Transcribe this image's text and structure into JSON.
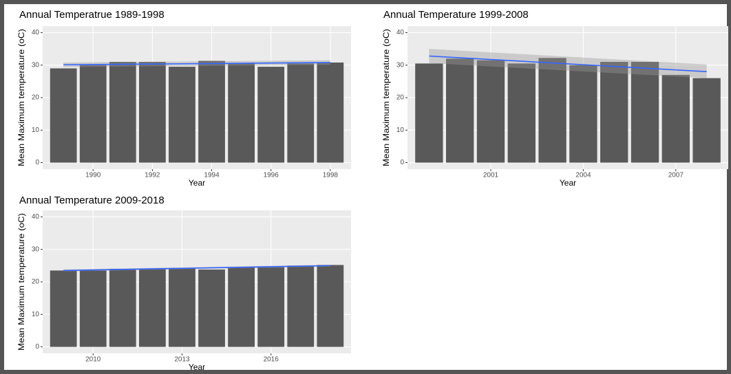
{
  "chart_data": [
    {
      "type": "bar",
      "title": "Annual Temperatrue 1989-1998",
      "x_label": "Year",
      "y_label": "Mean Maximum temperature (oC)",
      "x": [
        1989,
        1990,
        1991,
        1992,
        1993,
        1994,
        1995,
        1996,
        1997,
        1998
      ],
      "values": [
        29,
        30,
        31,
        31,
        29.5,
        31.3,
        30.5,
        29.5,
        30.5,
        30.8
      ],
      "color": "#595959",
      "xlim": [
        1988.3,
        1998.7
      ],
      "xticks": [
        1990,
        1992,
        1994,
        1996,
        1998
      ],
      "ylim": [
        -2,
        42
      ],
      "yticks": [
        0,
        10,
        20,
        30,
        40
      ],
      "grid": true,
      "trend": {
        "x": [
          1989,
          1998
        ],
        "values": [
          30.1,
          30.8
        ],
        "lower": [
          29.4,
          30.1
        ],
        "upper": [
          30.8,
          31.5
        ],
        "color": "#3366ff"
      }
    },
    {
      "type": "bar",
      "title": "Annual Temperature 1999-2008",
      "x_label": "Year",
      "y_label": "Mean Maximum temperature (oC)",
      "x": [
        1999,
        2000,
        2001,
        2002,
        2003,
        2004,
        2005,
        2006,
        2007,
        2008
      ],
      "values": [
        30.5,
        32,
        31.5,
        30.5,
        32.2,
        30,
        31,
        31,
        27,
        26
      ],
      "color": "#595959",
      "xlim": [
        1998.3,
        2008.7
      ],
      "xticks": [
        2001,
        2004,
        2007
      ],
      "ylim": [
        -2,
        42
      ],
      "yticks": [
        0,
        10,
        20,
        30,
        40
      ],
      "grid": true,
      "trend": {
        "x": [
          1999,
          2008
        ],
        "values": [
          32.8,
          28
        ],
        "lower": [
          30.6,
          26
        ],
        "upper": [
          35,
          30.2
        ],
        "color": "#3366ff"
      }
    },
    {
      "type": "bar",
      "title": "Annual Temperature 2009-2018",
      "x_label": "Year",
      "y_label": "Mean Maximum temperature (oC)",
      "x": [
        2009,
        2010,
        2011,
        2012,
        2013,
        2014,
        2015,
        2016,
        2017,
        2018
      ],
      "values": [
        23.5,
        23.5,
        24,
        24,
        24.2,
        23.8,
        24.5,
        24.5,
        25,
        25.2
      ],
      "color": "#595959",
      "xlim": [
        2008.3,
        2018.7
      ],
      "xticks": [
        2010,
        2013,
        2016
      ],
      "ylim": [
        -2,
        42
      ],
      "yticks": [
        0,
        10,
        20,
        30,
        40
      ],
      "grid": true,
      "trend": {
        "x": [
          2009,
          2018
        ],
        "values": [
          23.5,
          25
        ],
        "lower": [
          23.2,
          24.7
        ],
        "upper": [
          23.8,
          25.3
        ],
        "color": "#3366ff"
      }
    }
  ]
}
